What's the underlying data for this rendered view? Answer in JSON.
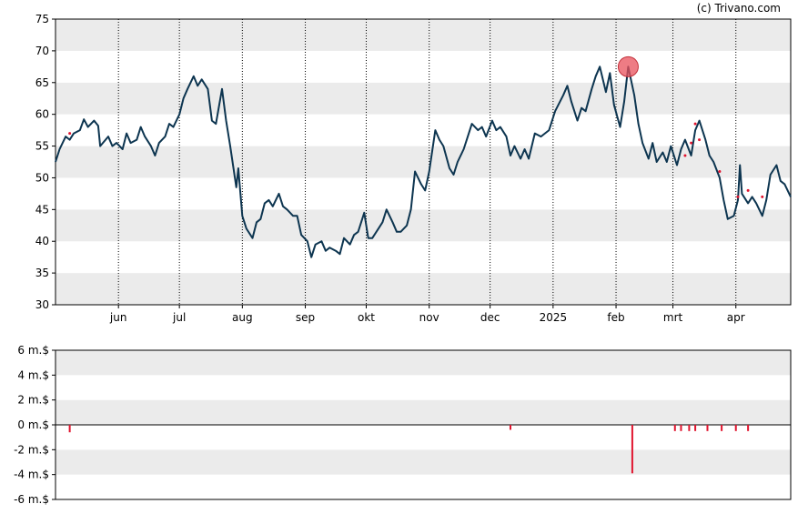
{
  "credit": "(c) Trivano.com",
  "chart_data": [
    {
      "type": "line",
      "ylim": [
        30,
        75
      ],
      "y_ticks": [
        "30",
        "35",
        "40",
        "45",
        "50",
        "55",
        "60",
        "65",
        "70",
        "75"
      ],
      "x_ticks": [
        "jun",
        "jul",
        "aug",
        "sep",
        "okt",
        "nov",
        "dec",
        "2025",
        "feb",
        "mrt",
        "apr"
      ],
      "x_tick_dates": [
        "2024-06-01",
        "2024-07-01",
        "2024-08-01",
        "2024-09-01",
        "2024-10-01",
        "2024-11-01",
        "2024-12-01",
        "2025-01-01",
        "2025-02-01",
        "2025-03-01",
        "2025-04-01"
      ],
      "x_range": [
        "2024-05-01",
        "2025-04-28"
      ],
      "grid": "horizontal bands, dotted vertical lines at month starts",
      "series": [
        {
          "color": "#0d3550",
          "points": [
            [
              "2024-05-01",
              52.5
            ],
            [
              "2024-05-03",
              54.5
            ],
            [
              "2024-05-06",
              56.5
            ],
            [
              "2024-05-08",
              56.0
            ],
            [
              "2024-05-10",
              57.0
            ],
            [
              "2024-05-13",
              57.5
            ],
            [
              "2024-05-15",
              59.2
            ],
            [
              "2024-05-17",
              58.0
            ],
            [
              "2024-05-20",
              59.0
            ],
            [
              "2024-05-22",
              58.2
            ],
            [
              "2024-05-23",
              55.0
            ],
            [
              "2024-05-27",
              56.5
            ],
            [
              "2024-05-29",
              55.0
            ],
            [
              "2024-05-31",
              55.5
            ],
            [
              "2024-06-03",
              54.5
            ],
            [
              "2024-06-05",
              57.0
            ],
            [
              "2024-06-07",
              55.5
            ],
            [
              "2024-06-10",
              56.0
            ],
            [
              "2024-06-12",
              58.0
            ],
            [
              "2024-06-14",
              56.5
            ],
            [
              "2024-06-17",
              55.0
            ],
            [
              "2024-06-19",
              53.5
            ],
            [
              "2024-06-21",
              55.5
            ],
            [
              "2024-06-24",
              56.5
            ],
            [
              "2024-06-26",
              58.5
            ],
            [
              "2024-06-28",
              58.0
            ],
            [
              "2024-07-01",
              60.0
            ],
            [
              "2024-07-03",
              62.5
            ],
            [
              "2024-07-05",
              64.0
            ],
            [
              "2024-07-08",
              66.0
            ],
            [
              "2024-07-10",
              64.5
            ],
            [
              "2024-07-12",
              65.5
            ],
            [
              "2024-07-15",
              64.0
            ],
            [
              "2024-07-17",
              59.0
            ],
            [
              "2024-07-19",
              58.5
            ],
            [
              "2024-07-22",
              64.0
            ],
            [
              "2024-07-24",
              59.0
            ],
            [
              "2024-07-26",
              55.0
            ],
            [
              "2024-07-29",
              48.5
            ],
            [
              "2024-07-30",
              51.5
            ],
            [
              "2024-08-01",
              44.0
            ],
            [
              "2024-08-03",
              42.0
            ],
            [
              "2024-08-06",
              40.5
            ],
            [
              "2024-08-08",
              43.0
            ],
            [
              "2024-08-10",
              43.5
            ],
            [
              "2024-08-12",
              46.0
            ],
            [
              "2024-08-14",
              46.5
            ],
            [
              "2024-08-16",
              45.5
            ],
            [
              "2024-08-19",
              47.5
            ],
            [
              "2024-08-21",
              45.5
            ],
            [
              "2024-08-23",
              45.0
            ],
            [
              "2024-08-26",
              44.0
            ],
            [
              "2024-08-28",
              44.0
            ],
            [
              "2024-08-30",
              41.0
            ],
            [
              "2024-09-02",
              40.0
            ],
            [
              "2024-09-04",
              37.5
            ],
            [
              "2024-09-06",
              39.5
            ],
            [
              "2024-09-09",
              40.0
            ],
            [
              "2024-09-11",
              38.5
            ],
            [
              "2024-09-13",
              39.0
            ],
            [
              "2024-09-16",
              38.5
            ],
            [
              "2024-09-18",
              38.0
            ],
            [
              "2024-09-20",
              40.5
            ],
            [
              "2024-09-23",
              39.5
            ],
            [
              "2024-09-25",
              41.0
            ],
            [
              "2024-09-27",
              41.5
            ],
            [
              "2024-09-30",
              44.5
            ],
            [
              "2024-10-02",
              40.5
            ],
            [
              "2024-10-04",
              40.5
            ],
            [
              "2024-10-07",
              42.0
            ],
            [
              "2024-10-09",
              43.0
            ],
            [
              "2024-10-11",
              45.0
            ],
            [
              "2024-10-14",
              43.0
            ],
            [
              "2024-10-16",
              41.5
            ],
            [
              "2024-10-18",
              41.5
            ],
            [
              "2024-10-21",
              42.5
            ],
            [
              "2024-10-23",
              45.0
            ],
            [
              "2024-10-25",
              51.0
            ],
            [
              "2024-10-28",
              49.0
            ],
            [
              "2024-10-30",
              48.0
            ],
            [
              "2024-11-01",
              51.0
            ],
            [
              "2024-11-04",
              57.5
            ],
            [
              "2024-11-06",
              56.0
            ],
            [
              "2024-11-08",
              55.0
            ],
            [
              "2024-11-11",
              51.5
            ],
            [
              "2024-11-13",
              50.5
            ],
            [
              "2024-11-15",
              52.5
            ],
            [
              "2024-11-18",
              54.5
            ],
            [
              "2024-11-20",
              56.5
            ],
            [
              "2024-11-22",
              58.5
            ],
            [
              "2024-11-25",
              57.5
            ],
            [
              "2024-11-27",
              58.0
            ],
            [
              "2024-11-29",
              56.5
            ],
            [
              "2024-12-02",
              59.0
            ],
            [
              "2024-12-04",
              57.5
            ],
            [
              "2024-12-06",
              58.0
            ],
            [
              "2024-12-09",
              56.5
            ],
            [
              "2024-12-11",
              53.5
            ],
            [
              "2024-12-13",
              55.0
            ],
            [
              "2024-12-16",
              53.0
            ],
            [
              "2024-12-18",
              54.5
            ],
            [
              "2024-12-20",
              53.0
            ],
            [
              "2024-12-23",
              57.0
            ],
            [
              "2024-12-26",
              56.5
            ],
            [
              "2024-12-30",
              57.5
            ],
            [
              "2025-01-02",
              60.5
            ],
            [
              "2025-01-06",
              63.0
            ],
            [
              "2025-01-08",
              64.5
            ],
            [
              "2025-01-10",
              62.0
            ],
            [
              "2025-01-13",
              59.0
            ],
            [
              "2025-01-15",
              61.0
            ],
            [
              "2025-01-17",
              60.5
            ],
            [
              "2025-01-20",
              64.0
            ],
            [
              "2025-01-22",
              66.0
            ],
            [
              "2025-01-24",
              67.5
            ],
            [
              "2025-01-27",
              63.5
            ],
            [
              "2025-01-29",
              66.5
            ],
            [
              "2025-01-31",
              61.5
            ],
            [
              "2025-02-03",
              58.0
            ],
            [
              "2025-02-05",
              62.0
            ],
            [
              "2025-02-07",
              67.5
            ],
            [
              "2025-02-10",
              63.0
            ],
            [
              "2025-02-12",
              58.5
            ],
            [
              "2025-02-14",
              55.5
            ],
            [
              "2025-02-17",
              53.0
            ],
            [
              "2025-02-19",
              55.5
            ],
            [
              "2025-02-21",
              52.5
            ],
            [
              "2025-02-24",
              54.0
            ],
            [
              "2025-02-26",
              52.5
            ],
            [
              "2025-02-28",
              55.0
            ],
            [
              "2025-03-03",
              52.0
            ],
            [
              "2025-03-05",
              54.5
            ],
            [
              "2025-03-07",
              56.0
            ],
            [
              "2025-03-10",
              53.5
            ],
            [
              "2025-03-12",
              57.5
            ],
            [
              "2025-03-14",
              59.0
            ],
            [
              "2025-03-17",
              56.0
            ],
            [
              "2025-03-19",
              53.5
            ],
            [
              "2025-03-21",
              52.5
            ],
            [
              "2025-03-24",
              50.0
            ],
            [
              "2025-03-26",
              46.5
            ],
            [
              "2025-03-28",
              43.5
            ],
            [
              "2025-03-31",
              44.0
            ],
            [
              "2025-04-02",
              46.5
            ],
            [
              "2025-04-03",
              52.0
            ],
            [
              "2025-04-04",
              47.5
            ],
            [
              "2025-04-07",
              46.0
            ],
            [
              "2025-04-09",
              47.0
            ],
            [
              "2025-04-11",
              46.0
            ],
            [
              "2025-04-14",
              44.0
            ],
            [
              "2025-04-16",
              46.5
            ],
            [
              "2025-04-18",
              50.5
            ],
            [
              "2025-04-21",
              52.0
            ],
            [
              "2025-04-23",
              49.5
            ],
            [
              "2025-04-25",
              49.0
            ],
            [
              "2025-04-28",
              47.0
            ]
          ]
        }
      ],
      "highlight_marker": {
        "date": "2025-02-07",
        "value": 67.5,
        "color": "#e8505b"
      },
      "trade_markers": [
        {
          "date": "2024-05-08",
          "value": 57.0
        },
        {
          "date": "2025-03-07",
          "value": 53.5
        },
        {
          "date": "2025-03-10",
          "value": 55.5
        },
        {
          "date": "2025-03-12",
          "value": 58.5
        },
        {
          "date": "2025-03-14",
          "value": 56.0
        },
        {
          "date": "2025-03-24",
          "value": 51.0
        },
        {
          "date": "2025-04-02",
          "value": 47.0
        },
        {
          "date": "2025-04-07",
          "value": 48.0
        },
        {
          "date": "2025-04-14",
          "value": 47.0
        }
      ]
    },
    {
      "type": "bar",
      "unit": "m.$",
      "ylim": [
        -6,
        6
      ],
      "y_ticks": [
        "6 m.$",
        "4 m.$",
        "2 m.$",
        "0 m.$",
        "-2 m.$",
        "-4 m.$",
        "-6 m.$"
      ],
      "bar_color": "#e0142e",
      "bars": [
        {
          "date": "2024-05-08",
          "value": -0.6
        },
        {
          "date": "2024-12-11",
          "value": -0.4
        },
        {
          "date": "2025-02-09",
          "value": -3.9
        },
        {
          "date": "2025-03-02",
          "value": -0.5
        },
        {
          "date": "2025-03-05",
          "value": -0.5
        },
        {
          "date": "2025-03-09",
          "value": -0.5
        },
        {
          "date": "2025-03-12",
          "value": -0.5
        },
        {
          "date": "2025-03-18",
          "value": -0.5
        },
        {
          "date": "2025-03-25",
          "value": -0.5
        },
        {
          "date": "2025-04-01",
          "value": -0.5
        },
        {
          "date": "2025-04-07",
          "value": -0.5
        }
      ]
    }
  ]
}
